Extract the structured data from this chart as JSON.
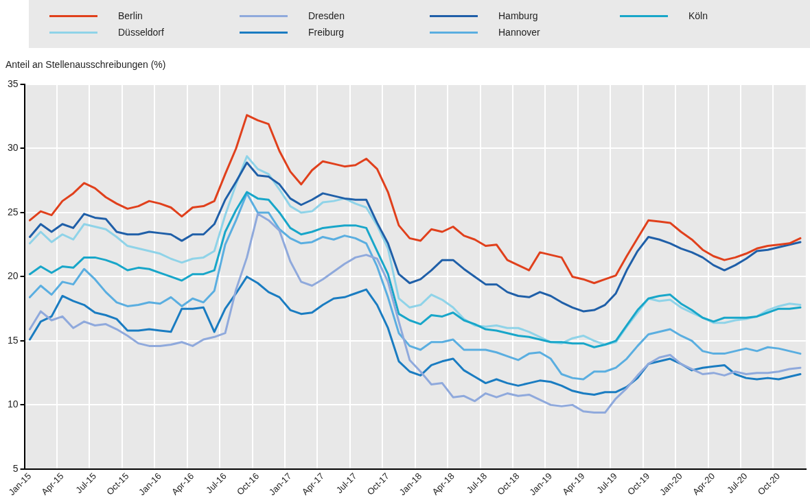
{
  "chart_data": {
    "type": "line",
    "ylabel": "Anteil an Stellenausschreibungen (%)",
    "categories": [
      "Jan-15",
      null,
      null,
      "Apr-15",
      null,
      null,
      "Jul-15",
      null,
      null,
      "Oct-15",
      null,
      null,
      "Jan-16",
      null,
      null,
      "Apr-16",
      null,
      null,
      "Jul-16",
      null,
      null,
      "Oct-16",
      null,
      null,
      "Jan-17",
      null,
      null,
      "Apr-17",
      null,
      null,
      "Jul-17",
      null,
      null,
      "Oct-17",
      null,
      null,
      "Jan-18",
      null,
      null,
      "Apr-18",
      null,
      null,
      "Jul-18",
      null,
      null,
      "Oct-18",
      null,
      null,
      "Jan-19",
      null,
      null,
      "Apr-19",
      null,
      null,
      "Jul-19",
      null,
      null,
      "Oct-19",
      null,
      null,
      "Jan-20",
      null,
      null,
      "Apr-20",
      null,
      null,
      "Jul-20",
      null,
      null,
      "Oct-20",
      null,
      null
    ],
    "series": [
      {
        "name": "Berlin",
        "color": "#e0401c",
        "values": [
          24.4,
          25.1,
          24.8,
          25.9,
          26.5,
          27.3,
          26.9,
          26.2,
          25.7,
          25.3,
          25.5,
          25.9,
          25.7,
          25.4,
          24.7,
          25.4,
          25.5,
          25.9,
          28.0,
          30.0,
          32.6,
          32.2,
          31.9,
          29.8,
          28.2,
          27.2,
          28.3,
          29.0,
          28.8,
          28.6,
          28.7,
          29.2,
          28.4,
          26.6,
          24.0,
          23.0,
          22.8,
          23.7,
          23.5,
          23.9,
          23.2,
          22.9,
          22.4,
          22.5,
          21.3,
          20.9,
          20.5,
          21.9,
          21.7,
          21.5,
          20.0,
          19.8,
          19.5,
          19.8,
          20.1,
          21.6,
          23.0,
          24.4,
          24.3,
          24.2,
          23.5,
          22.9,
          22.1,
          21.6,
          21.3,
          21.5,
          21.8,
          22.2,
          22.4,
          22.5,
          22.6,
          23.0
        ]
      },
      {
        "name": "Dresden",
        "color": "#8fa9dc",
        "values": [
          15.9,
          17.3,
          16.6,
          16.9,
          16.0,
          16.5,
          16.2,
          16.3,
          15.9,
          15.4,
          14.8,
          14.6,
          14.6,
          14.7,
          14.9,
          14.6,
          15.1,
          15.3,
          15.6,
          19.0,
          21.5,
          24.9,
          24.4,
          23.6,
          21.2,
          19.6,
          19.3,
          19.8,
          20.4,
          21.0,
          21.5,
          21.7,
          21.4,
          19.6,
          16.5,
          13.5,
          12.6,
          11.6,
          11.7,
          10.6,
          10.7,
          10.3,
          10.9,
          10.6,
          10.9,
          10.7,
          10.8,
          10.4,
          10.0,
          9.9,
          10.0,
          9.5,
          9.4,
          9.4,
          10.5,
          11.3,
          12.3,
          13.2,
          13.7,
          13.9,
          13.2,
          12.8,
          12.4,
          12.5,
          12.3,
          12.6,
          12.4,
          12.5,
          12.5,
          12.6,
          12.8,
          12.9
        ]
      },
      {
        "name": "Hamburg",
        "color": "#1f5fa8",
        "values": [
          23.1,
          24.1,
          23.5,
          24.1,
          23.8,
          24.9,
          24.6,
          24.5,
          23.5,
          23.3,
          23.3,
          23.5,
          23.4,
          23.3,
          22.8,
          23.3,
          23.3,
          24.1,
          26.0,
          27.4,
          28.9,
          27.9,
          27.8,
          27.2,
          26.1,
          25.6,
          26.0,
          26.5,
          26.3,
          26.1,
          26.0,
          26.0,
          24.2,
          22.6,
          20.2,
          19.5,
          19.8,
          20.5,
          21.3,
          21.3,
          20.6,
          20.0,
          19.4,
          19.4,
          18.8,
          18.5,
          18.4,
          18.8,
          18.5,
          18.0,
          17.6,
          17.3,
          17.4,
          17.8,
          18.7,
          20.5,
          22.0,
          23.1,
          22.9,
          22.6,
          22.2,
          21.9,
          21.5,
          20.9,
          20.5,
          20.9,
          21.4,
          22.0,
          22.1,
          22.3,
          22.5,
          22.7
        ]
      },
      {
        "name": "Köln",
        "color": "#18a6c9",
        "values": [
          20.2,
          20.8,
          20.3,
          20.8,
          20.7,
          21.5,
          21.5,
          21.3,
          21.0,
          20.5,
          20.7,
          20.6,
          20.3,
          20.0,
          19.7,
          20.2,
          20.2,
          20.5,
          23.5,
          25.2,
          26.6,
          26.1,
          26.0,
          25.0,
          23.8,
          23.3,
          23.5,
          23.8,
          23.9,
          24.0,
          24.0,
          23.8,
          22.0,
          20.2,
          17.1,
          16.6,
          16.3,
          17.0,
          16.9,
          17.2,
          16.6,
          16.3,
          15.9,
          15.8,
          15.6,
          15.4,
          15.3,
          15.1,
          14.9,
          14.9,
          14.8,
          14.8,
          14.5,
          14.7,
          15.0,
          16.2,
          17.4,
          18.3,
          18.5,
          18.6,
          17.9,
          17.4,
          16.8,
          16.5,
          16.8,
          16.8,
          16.8,
          16.9,
          17.2,
          17.5,
          17.5,
          17.6
        ]
      },
      {
        "name": "Düsseldorf",
        "color": "#8fd3e8",
        "values": [
          22.6,
          23.5,
          22.7,
          23.3,
          22.9,
          24.1,
          23.9,
          23.7,
          23.1,
          22.4,
          22.2,
          22.0,
          21.8,
          21.4,
          21.1,
          21.4,
          21.5,
          22.0,
          24.8,
          27.2,
          29.4,
          28.4,
          28.0,
          26.8,
          25.5,
          25.0,
          25.1,
          25.8,
          25.9,
          26.1,
          25.7,
          25.4,
          24.0,
          22.2,
          18.3,
          17.6,
          17.8,
          18.6,
          18.2,
          17.6,
          16.7,
          16.2,
          16.1,
          16.2,
          16.0,
          16.0,
          15.7,
          15.3,
          14.9,
          14.8,
          15.2,
          15.4,
          15.0,
          14.7,
          14.9,
          16.1,
          17.2,
          18.3,
          18.1,
          18.2,
          17.6,
          17.2,
          16.8,
          16.4,
          16.4,
          16.6,
          16.7,
          16.9,
          17.4,
          17.7,
          17.9,
          17.8
        ]
      },
      {
        "name": "Freiburg",
        "color": "#1a7cc1",
        "values": [
          15.1,
          16.5,
          16.9,
          18.5,
          18.1,
          17.8,
          17.2,
          17.0,
          16.7,
          15.8,
          15.8,
          15.9,
          15.8,
          15.7,
          17.5,
          17.5,
          17.6,
          15.7,
          17.5,
          18.7,
          20.0,
          19.5,
          18.8,
          18.4,
          17.4,
          17.1,
          17.2,
          17.8,
          18.3,
          18.4,
          18.7,
          19.0,
          17.8,
          16.0,
          13.4,
          12.6,
          12.3,
          13.1,
          13.4,
          13.6,
          12.7,
          12.2,
          11.7,
          12.0,
          11.7,
          11.5,
          11.7,
          11.9,
          11.8,
          11.5,
          11.1,
          10.9,
          10.8,
          11.0,
          11.0,
          11.4,
          12.1,
          13.2,
          13.4,
          13.6,
          13.2,
          12.7,
          12.9,
          13.0,
          13.1,
          12.4,
          12.1,
          12.0,
          12.1,
          12.0,
          12.2,
          12.4
        ]
      },
      {
        "name": "Hannover",
        "color": "#5aaee0",
        "values": [
          18.4,
          19.3,
          18.6,
          19.6,
          19.4,
          20.6,
          19.8,
          18.8,
          18.0,
          17.7,
          17.8,
          18.0,
          17.9,
          18.4,
          17.7,
          18.3,
          18.0,
          18.9,
          22.5,
          24.4,
          26.5,
          25.0,
          25.0,
          23.7,
          23.0,
          22.6,
          22.7,
          23.1,
          22.9,
          23.2,
          23.0,
          22.6,
          20.8,
          18.4,
          15.6,
          14.6,
          14.3,
          14.9,
          14.9,
          15.1,
          14.3,
          14.3,
          14.3,
          14.1,
          13.8,
          13.5,
          14.0,
          14.1,
          13.6,
          12.4,
          12.1,
          12.0,
          12.6,
          12.6,
          12.9,
          13.6,
          14.6,
          15.5,
          15.7,
          15.9,
          15.4,
          15.0,
          14.2,
          14.0,
          14.0,
          14.2,
          14.4,
          14.2,
          14.5,
          14.4,
          14.2,
          14.0
        ]
      }
    ],
    "ylim": [
      5,
      35
    ],
    "yticks": [
      5,
      10,
      15,
      20,
      25,
      30,
      35
    ],
    "grid": true,
    "legend": "top",
    "marker": "none",
    "line_style": "solid"
  }
}
